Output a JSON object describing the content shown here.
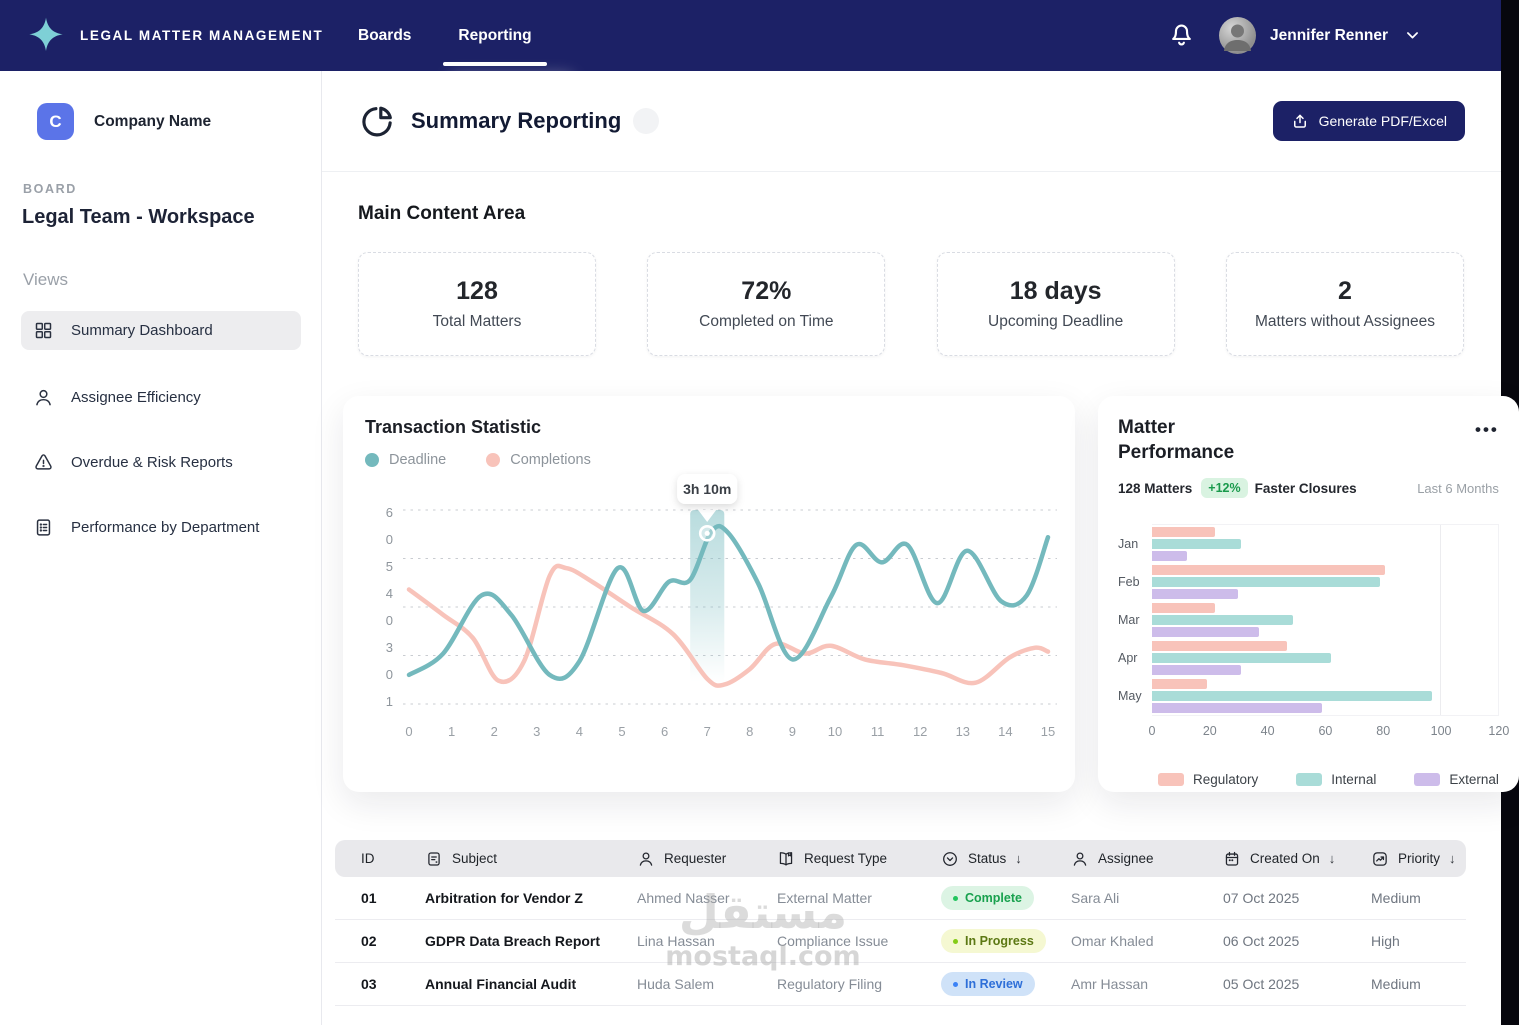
{
  "navbar": {
    "brand": "LEGAL MATTER MANAGEMENT",
    "tabs": [
      {
        "label": "Boards",
        "active": false
      },
      {
        "label": "Reporting",
        "active": true
      }
    ],
    "user_name": "Jennifer Renner"
  },
  "sidebar": {
    "company_initial": "C",
    "company_name": "Company Name",
    "board_label": "BOARD",
    "board_name": "Legal Team - Workspace",
    "views_label": "Views",
    "items": [
      {
        "label": "Summary Dashboard",
        "icon": "grid-icon",
        "active": true
      },
      {
        "label": "Assignee Efficiency",
        "icon": "user-icon",
        "active": false
      },
      {
        "label": "Overdue & Risk Reports",
        "icon": "alert-triangle-icon",
        "active": false
      },
      {
        "label": "Performance by Department",
        "icon": "report-icon",
        "active": false
      }
    ]
  },
  "header": {
    "title": "Summary Reporting",
    "generate_button": "Generate PDF/Excel"
  },
  "main": {
    "section_title": "Main Content Area",
    "stats": [
      {
        "value": "128",
        "label": "Total Matters"
      },
      {
        "value": "72%",
        "label": "Completed on Time"
      },
      {
        "value": "18 days",
        "label": "Upcoming Deadline"
      },
      {
        "value": "2",
        "label": "Matters without Assignees"
      }
    ]
  },
  "transaction_chart": {
    "title": "Transaction Statistic",
    "legend": [
      {
        "label": "Deadline",
        "color": "#74b9bd"
      },
      {
        "label": "Completions",
        "color": "#f8c3ba"
      }
    ]
  },
  "matter_card": {
    "title_line1": "Matter",
    "title_line2": "Performance",
    "matters": "128 Matters",
    "delta": "+12%",
    "delta_label": "Faster Closures",
    "range": "Last 6 Months"
  },
  "chart_data": [
    {
      "type": "line",
      "title": "Transaction Statistic",
      "x": {
        "min": 0,
        "max": 15,
        "ticks": [
          0,
          1,
          2,
          3,
          4,
          5,
          6,
          7,
          8,
          9,
          10,
          11,
          12,
          13,
          14,
          15
        ]
      },
      "y_tick_labels": [
        "6",
        "0",
        "5",
        "4",
        "0",
        "3",
        "0",
        "1"
      ],
      "ylim": [
        0,
        10
      ],
      "grid": "dashed-horizontal",
      "legend_position": "top-left",
      "series": [
        {
          "name": "Completions",
          "color": "#f8c3ba",
          "points": [
            [
              0,
              5.9
            ],
            [
              0.8,
              4.6
            ],
            [
              1.5,
              3.4
            ],
            [
              2.1,
              1.2
            ],
            [
              2.7,
              2.2
            ],
            [
              3.3,
              6.6
            ],
            [
              3.7,
              7.0
            ],
            [
              4.3,
              6.3
            ],
            [
              5.2,
              5.0
            ],
            [
              6.2,
              3.6
            ],
            [
              7.0,
              1.3
            ],
            [
              7.4,
              1.0
            ],
            [
              8.0,
              1.8
            ],
            [
              8.6,
              3.1
            ],
            [
              9.3,
              2.6
            ],
            [
              9.9,
              3.0
            ],
            [
              10.7,
              2.3
            ],
            [
              11.6,
              2.0
            ],
            [
              12.5,
              1.6
            ],
            [
              13.3,
              1.1
            ],
            [
              14.1,
              2.4
            ],
            [
              14.7,
              2.9
            ],
            [
              15,
              2.7
            ]
          ]
        },
        {
          "name": "Deadline",
          "color": "#74b9bd",
          "points": [
            [
              0,
              1.5
            ],
            [
              0.8,
              2.6
            ],
            [
              1.7,
              5.6
            ],
            [
              2.4,
              4.6
            ],
            [
              3.3,
              1.5
            ],
            [
              4.0,
              2.2
            ],
            [
              4.9,
              7.0
            ],
            [
              5.5,
              4.8
            ],
            [
              6.1,
              6.3
            ],
            [
              6.6,
              6.4
            ],
            [
              7.1,
              8.9
            ],
            [
              7.5,
              8.8
            ],
            [
              8.2,
              6.2
            ],
            [
              9.0,
              2.3
            ],
            [
              9.9,
              5.5
            ],
            [
              10.5,
              8.2
            ],
            [
              11.1,
              7.3
            ],
            [
              11.7,
              8.2
            ],
            [
              12.4,
              5.2
            ],
            [
              13.1,
              7.9
            ],
            [
              13.9,
              5.3
            ],
            [
              14.5,
              5.6
            ],
            [
              15,
              8.6
            ]
          ]
        }
      ],
      "highlight": {
        "x_from": 6.6,
        "x_to": 7.4,
        "marker": [
          7.0,
          8.8
        ],
        "tooltip": "3h 10m"
      }
    },
    {
      "type": "bar",
      "orientation": "horizontal",
      "title": "Matter Performance",
      "categories": [
        "Jan",
        "Feb",
        "Mar",
        "Apr",
        "May"
      ],
      "series": [
        {
          "name": "Regulatory",
          "color": "#f8c3ba",
          "values": [
            22,
            81,
            22,
            47,
            19
          ]
        },
        {
          "name": "Internal",
          "color": "#a9dcd8",
          "values": [
            31,
            79,
            49,
            62,
            97
          ]
        },
        {
          "name": "External",
          "color": "#cdbcea",
          "values": [
            12,
            30,
            37,
            31,
            59
          ]
        }
      ],
      "xlim": [
        0,
        120
      ],
      "x_ticks": [
        0,
        20,
        40,
        60,
        80,
        100,
        120
      ],
      "legend_position": "bottom"
    }
  ],
  "table": {
    "headers": [
      {
        "label": "ID",
        "icon": "",
        "sortable": false
      },
      {
        "label": "Subject",
        "icon": "subject-icon",
        "sortable": false
      },
      {
        "label": "Requester",
        "icon": "user-icon",
        "sortable": false
      },
      {
        "label": "Request Type",
        "icon": "book-icon",
        "sortable": false
      },
      {
        "label": "Status",
        "icon": "status-icon",
        "sortable": true
      },
      {
        "label": "Assignee",
        "icon": "user-icon",
        "sortable": false
      },
      {
        "label": "Created On",
        "icon": "calendar-icon",
        "sortable": true
      },
      {
        "label": "Priority",
        "icon": "priority-icon",
        "sortable": true
      }
    ],
    "rows": [
      {
        "id": "01",
        "subject": "Arbitration for Vendor Z",
        "requester": "Ahmed Nasser",
        "request_type": "External Matter",
        "status": {
          "label": "Complete",
          "bg": "#dcf4e4",
          "color": "#18a14e",
          "dot": "#22c55e"
        },
        "assignee": "Sara Ali",
        "created_on": "07 Oct 2025",
        "priority": "Medium"
      },
      {
        "id": "02",
        "subject": "GDPR Data Breach Report",
        "requester": "Lina Hassan",
        "request_type": "Compliance Issue",
        "status": {
          "label": "In Progress",
          "bg": "#f5f8d2",
          "color": "#5c7814",
          "dot": "#84cc16"
        },
        "assignee": "Omar Khaled",
        "created_on": "06 Oct 2025",
        "priority": "High"
      },
      {
        "id": "03",
        "subject": "Annual Financial Audit",
        "requester": "Huda Salem",
        "request_type": "Regulatory Filing",
        "status": {
          "label": "In Review",
          "bg": "#cfe2f8",
          "color": "#2e6fd8",
          "dot": "#3b82f6"
        },
        "assignee": "Amr Hassan",
        "created_on": "05 Oct 2025",
        "priority": "Medium"
      }
    ]
  },
  "watermark": {
    "arabic": "مستقل",
    "latin": "mostaql.com"
  }
}
